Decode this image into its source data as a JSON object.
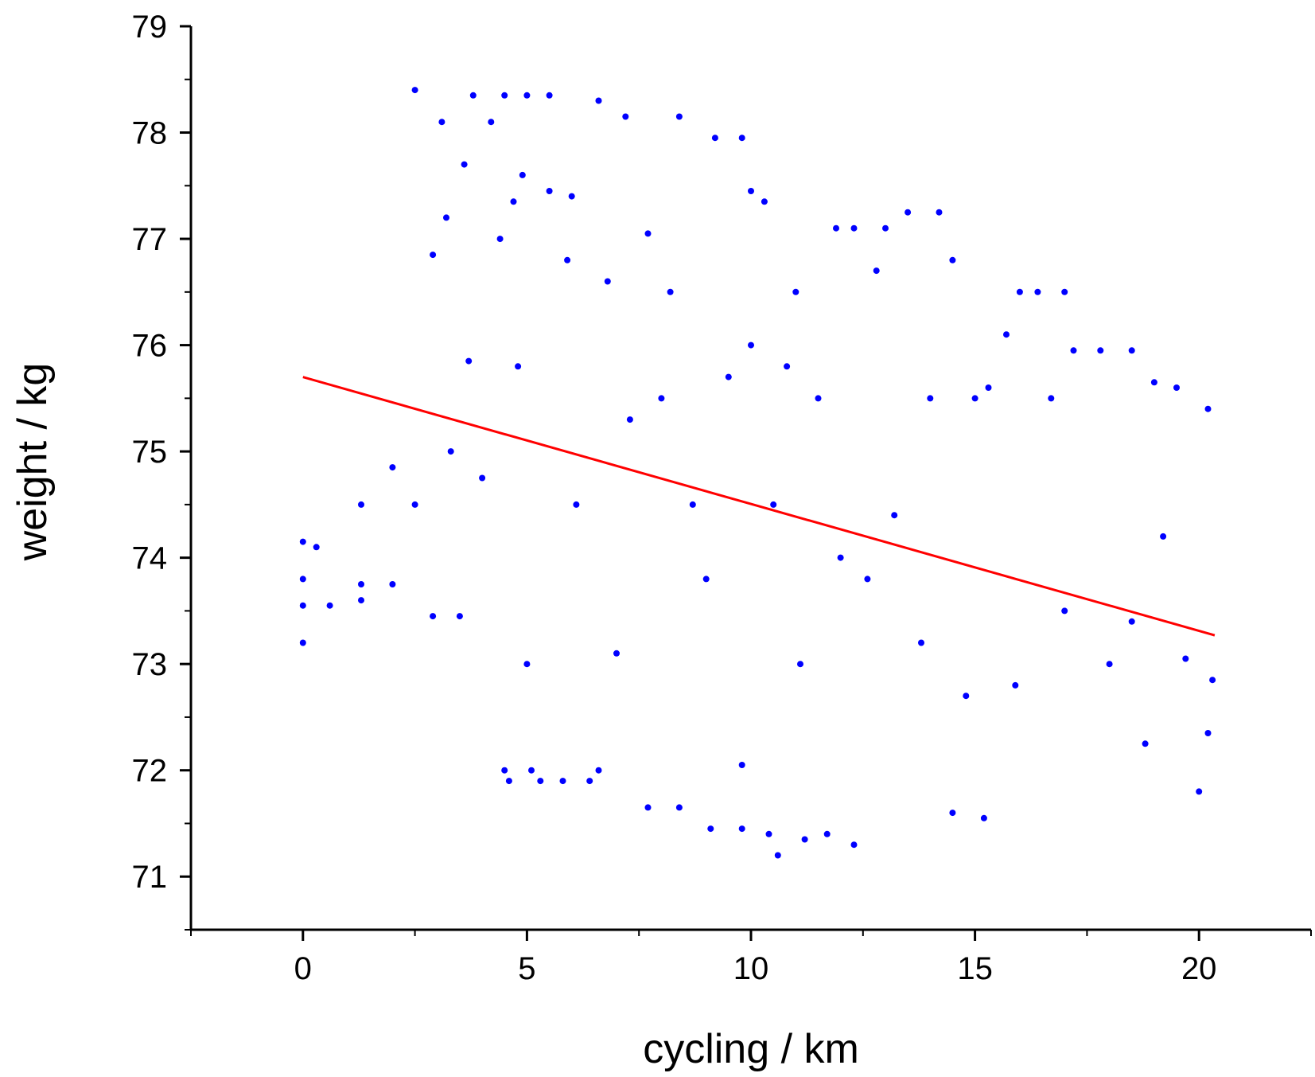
{
  "chart_data": {
    "type": "scatter",
    "title": "",
    "xlabel": "cycling / km",
    "ylabel": "weight / kg",
    "xlim": [
      -2.5,
      22.5
    ],
    "ylim": [
      70.5,
      79
    ],
    "x_ticks": [
      "0",
      "5",
      "10",
      "15",
      "20"
    ],
    "y_ticks": [
      "71",
      "72",
      "73",
      "74",
      "75",
      "76",
      "77",
      "78",
      "79"
    ],
    "grid": false,
    "legend": "none",
    "colors": {
      "points": "#0000ff",
      "fit_line": "#ff0000",
      "axes": "#000000"
    },
    "series": [
      {
        "kind": "scatter",
        "marker": "filled-circle",
        "values_sample": [
          [
            0.0,
            74.15
          ],
          [
            0.0,
            73.8
          ],
          [
            0.0,
            73.55
          ],
          [
            0.0,
            73.2
          ],
          [
            0.3,
            74.1
          ],
          [
            0.6,
            73.55
          ],
          [
            1.3,
            74.5
          ],
          [
            1.3,
            73.75
          ],
          [
            1.3,
            73.6
          ],
          [
            2.0,
            74.85
          ],
          [
            2.0,
            73.75
          ],
          [
            2.5,
            74.5
          ],
          [
            2.5,
            78.4
          ],
          [
            2.9,
            76.85
          ],
          [
            2.9,
            73.45
          ],
          [
            3.1,
            78.1
          ],
          [
            3.2,
            77.2
          ],
          [
            3.3,
            75.0
          ],
          [
            3.5,
            73.45
          ],
          [
            3.6,
            77.7
          ],
          [
            3.7,
            75.85
          ],
          [
            3.8,
            78.35
          ],
          [
            4.0,
            74.75
          ],
          [
            4.2,
            78.1
          ],
          [
            4.4,
            77.0
          ],
          [
            4.5,
            78.35
          ],
          [
            4.5,
            72.0
          ],
          [
            4.6,
            71.9
          ],
          [
            4.7,
            77.35
          ],
          [
            4.8,
            75.8
          ],
          [
            4.9,
            77.6
          ],
          [
            5.0,
            78.35
          ],
          [
            5.0,
            73.0
          ],
          [
            5.1,
            72.0
          ],
          [
            5.3,
            71.9
          ],
          [
            5.5,
            78.35
          ],
          [
            5.5,
            77.45
          ],
          [
            5.8,
            71.9
          ],
          [
            5.9,
            76.8
          ],
          [
            6.0,
            77.4
          ],
          [
            6.1,
            74.5
          ],
          [
            6.4,
            71.9
          ],
          [
            6.6,
            78.3
          ],
          [
            6.6,
            72.0
          ],
          [
            6.8,
            76.6
          ],
          [
            7.0,
            73.1
          ],
          [
            7.2,
            78.15
          ],
          [
            7.3,
            75.3
          ],
          [
            7.7,
            77.05
          ],
          [
            7.7,
            71.65
          ],
          [
            8.0,
            75.5
          ],
          [
            8.2,
            76.5
          ],
          [
            8.4,
            78.15
          ],
          [
            8.4,
            71.65
          ],
          [
            8.7,
            74.5
          ],
          [
            9.0,
            73.8
          ],
          [
            9.1,
            71.45
          ],
          [
            9.2,
            77.95
          ],
          [
            9.5,
            75.7
          ],
          [
            9.8,
            77.95
          ],
          [
            9.8,
            72.05
          ],
          [
            9.8,
            71.45
          ],
          [
            10.0,
            77.45
          ],
          [
            10.0,
            76.0
          ],
          [
            10.3,
            77.35
          ],
          [
            10.4,
            71.4
          ],
          [
            10.5,
            74.5
          ],
          [
            10.6,
            71.2
          ],
          [
            10.8,
            75.8
          ],
          [
            11.0,
            76.5
          ],
          [
            11.1,
            73.0
          ],
          [
            11.2,
            71.35
          ],
          [
            11.5,
            75.5
          ],
          [
            11.7,
            71.4
          ],
          [
            11.9,
            77.1
          ],
          [
            12.0,
            74.0
          ],
          [
            12.3,
            77.1
          ],
          [
            12.3,
            71.3
          ],
          [
            12.6,
            73.8
          ],
          [
            12.8,
            76.7
          ],
          [
            13.0,
            77.1
          ],
          [
            13.2,
            74.4
          ],
          [
            13.5,
            77.25
          ],
          [
            13.8,
            73.2
          ],
          [
            14.0,
            75.5
          ],
          [
            14.2,
            77.25
          ],
          [
            14.5,
            76.8
          ],
          [
            14.5,
            71.6
          ],
          [
            14.8,
            72.7
          ],
          [
            15.0,
            75.5
          ],
          [
            15.2,
            71.55
          ],
          [
            15.3,
            75.6
          ],
          [
            15.7,
            76.1
          ],
          [
            15.9,
            72.8
          ],
          [
            16.0,
            76.5
          ],
          [
            16.4,
            76.5
          ],
          [
            16.7,
            75.5
          ],
          [
            17.0,
            76.5
          ],
          [
            17.0,
            73.5
          ],
          [
            17.2,
            75.95
          ],
          [
            17.8,
            75.95
          ],
          [
            18.0,
            73.0
          ],
          [
            18.5,
            75.95
          ],
          [
            18.5,
            73.4
          ],
          [
            18.8,
            72.25
          ],
          [
            19.0,
            75.65
          ],
          [
            19.2,
            74.2
          ],
          [
            19.5,
            75.6
          ],
          [
            19.7,
            73.05
          ],
          [
            20.0,
            71.8
          ],
          [
            20.2,
            75.4
          ],
          [
            20.2,
            72.35
          ],
          [
            20.3,
            72.85
          ]
        ]
      },
      {
        "kind": "line",
        "values": [
          [
            0,
            75.7
          ],
          [
            20.35,
            73.27
          ]
        ]
      }
    ]
  }
}
